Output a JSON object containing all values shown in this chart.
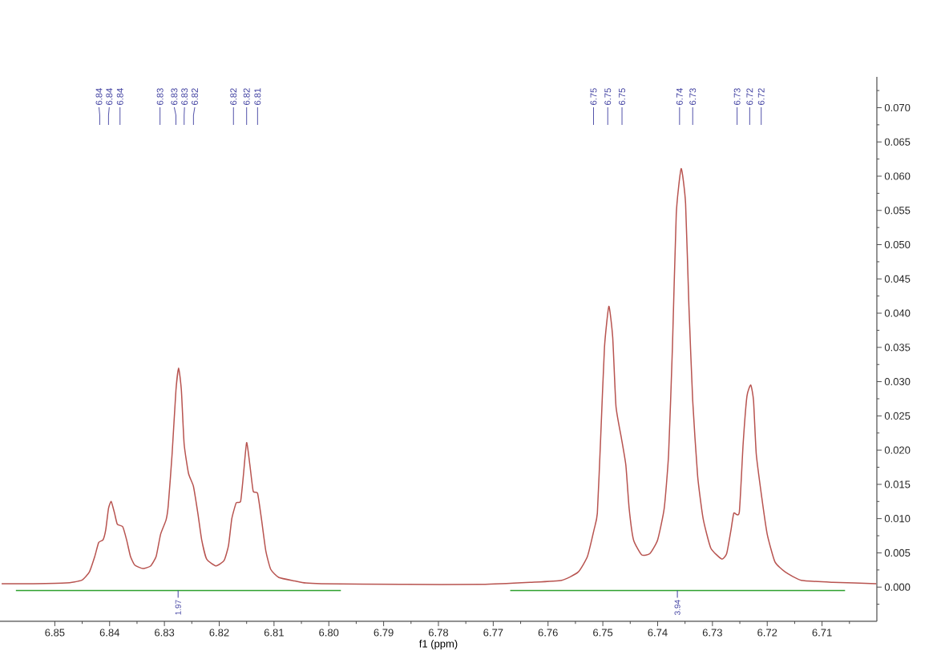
{
  "chart_data": {
    "type": "line",
    "xlabel": "f1 (ppm)",
    "xlim": [
      6.86,
      6.7
    ],
    "ylim": [
      -0.005,
      0.0745
    ],
    "xticks": [
      6.85,
      {
        "value": 6.845,
        "label": null
      },
      6.84,
      {
        "value": 6.835,
        "label": null
      },
      6.83,
      {
        "value": 6.825,
        "label": null
      },
      6.82,
      {
        "value": 6.815,
        "label": null
      },
      6.81,
      {
        "value": 6.805,
        "label": null
      },
      {
        "value": 6.8,
        "label": "6.80"
      },
      {
        "value": 6.795,
        "label": null
      },
      6.79,
      {
        "value": 6.785,
        "label": null
      },
      6.78,
      {
        "value": 6.775,
        "label": null
      },
      6.77,
      {
        "value": 6.765,
        "label": null
      },
      6.76,
      {
        "value": 6.755,
        "label": null
      },
      6.75,
      {
        "value": 6.745,
        "label": null
      },
      6.74,
      {
        "value": 6.735,
        "label": null
      },
      6.73,
      {
        "value": 6.725,
        "label": null
      },
      6.72,
      {
        "value": 6.715,
        "label": null
      },
      6.71,
      {
        "value": 6.705,
        "label": null
      }
    ],
    "yticks": [
      {
        "value": -0.0025,
        "label": null
      },
      {
        "value": 0,
        "label": "0.000"
      },
      {
        "value": 0.0025,
        "label": null
      },
      {
        "value": 0.005,
        "label": "0.005"
      },
      {
        "value": 0.0075,
        "label": null
      },
      {
        "value": 0.01,
        "label": "0.010"
      },
      {
        "value": 0.0125,
        "label": null
      },
      {
        "value": 0.015,
        "label": "0.015"
      },
      {
        "value": 0.0175,
        "label": null
      },
      {
        "value": 0.02,
        "label": "0.020"
      },
      {
        "value": 0.0225,
        "label": null
      },
      {
        "value": 0.025,
        "label": "0.025"
      },
      {
        "value": 0.0275,
        "label": null
      },
      {
        "value": 0.03,
        "label": "0.030"
      },
      {
        "value": 0.0325,
        "label": null
      },
      {
        "value": 0.035,
        "label": "0.035"
      },
      {
        "value": 0.0375,
        "label": null
      },
      {
        "value": 0.04,
        "label": "0.040"
      },
      {
        "value": 0.0425,
        "label": null
      },
      {
        "value": 0.045,
        "label": "0.045"
      },
      {
        "value": 0.0475,
        "label": null
      },
      {
        "value": 0.05,
        "label": "0.050"
      },
      {
        "value": 0.0525,
        "label": null
      },
      {
        "value": 0.055,
        "label": "0.055"
      },
      {
        "value": 0.0575,
        "label": null
      },
      {
        "value": 0.06,
        "label": "0.060"
      },
      {
        "value": 0.0625,
        "label": null
      },
      {
        "value": 0.065,
        "label": "0.065"
      },
      {
        "value": 0.0675,
        "label": null
      },
      {
        "value": 0.07,
        "label": "0.070"
      },
      {
        "value": 0.0725,
        "label": null
      }
    ],
    "series": [
      {
        "color": "#b85450",
        "x": [
          6.8597,
          6.8539,
          6.848,
          6.8451,
          6.8437,
          6.8427,
          6.842,
          6.8412,
          6.8407,
          6.8402,
          6.8397,
          6.8391,
          6.8386,
          6.8376,
          6.8369,
          6.8362,
          6.8354,
          6.8339,
          6.8325,
          6.8315,
          6.8307,
          6.8297,
          6.8293,
          6.8286,
          6.8279,
          6.8274,
          6.8269,
          6.8264,
          6.8256,
          6.8247,
          6.8239,
          6.8232,
          6.8223,
          6.8206,
          6.8191,
          6.8183,
          6.8177,
          6.8169,
          6.8161,
          6.8156,
          6.815,
          6.8144,
          6.8138,
          6.813,
          6.8123,
          6.8115,
          6.8106,
          6.8091,
          6.8062,
          6.8042,
          6.8013,
          6.7867,
          6.7721,
          6.7633,
          6.7575,
          6.7545,
          6.7528,
          6.7516,
          6.751,
          6.7504,
          6.7497,
          6.7489,
          6.7482,
          6.7476,
          6.7466,
          6.7458,
          6.7452,
          6.7444,
          6.7429,
          6.7414,
          6.74,
          6.7388,
          6.738,
          6.7373,
          6.7366,
          6.7357,
          6.7349,
          6.7343,
          6.7336,
          6.7327,
          6.7317,
          6.7303,
          6.7283,
          6.7274,
          6.7266,
          6.7261,
          6.7251,
          6.7244,
          6.7237,
          6.723,
          6.7225,
          6.722,
          6.721,
          6.72,
          6.7186,
          6.7167,
          6.7138,
          6.708,
          6.7001
        ],
        "values": [
          0.0005,
          0.0005,
          0.0006,
          0.001,
          0.0022,
          0.0045,
          0.0065,
          0.0069,
          0.0084,
          0.0115,
          0.0125,
          0.0108,
          0.0092,
          0.0088,
          0.0069,
          0.0045,
          0.0032,
          0.0027,
          0.0031,
          0.0045,
          0.0077,
          0.0098,
          0.0119,
          0.0194,
          0.0287,
          0.032,
          0.0287,
          0.0209,
          0.0166,
          0.0147,
          0.0108,
          0.0069,
          0.0041,
          0.0031,
          0.0039,
          0.0061,
          0.01,
          0.0123,
          0.0125,
          0.0162,
          0.0211,
          0.0178,
          0.014,
          0.0137,
          0.01,
          0.0053,
          0.0026,
          0.0014,
          0.0009,
          0.0006,
          0.0005,
          0.0004,
          0.0004,
          0.0007,
          0.001,
          0.0022,
          0.0045,
          0.0084,
          0.0108,
          0.0217,
          0.035,
          0.041,
          0.0365,
          0.0264,
          0.0217,
          0.0178,
          0.0115,
          0.0069,
          0.0047,
          0.0049,
          0.0069,
          0.0115,
          0.0194,
          0.035,
          0.0545,
          0.0611,
          0.056,
          0.0412,
          0.0272,
          0.0162,
          0.01,
          0.0057,
          0.0041,
          0.0049,
          0.0084,
          0.0108,
          0.0109,
          0.0209,
          0.0279,
          0.0295,
          0.0272,
          0.0194,
          0.0131,
          0.0077,
          0.0037,
          0.0022,
          0.001,
          0.0007,
          0.0005
        ]
      },
      {
        "color": "#2ca02c",
        "x": [
          6.8571,
          6.7978
        ],
        "values": [
          -0.0005,
          -0.0005
        ]
      },
      {
        "color": "#2ca02c",
        "x": [
          6.7669,
          6.7058
        ],
        "values": [
          -0.0005,
          -0.0005
        ]
      }
    ],
    "annotations": [
      {
        "text": "6.84",
        "x": 6.8418
      },
      {
        "text": "6.84",
        "x": 6.8402
      },
      {
        "text": "6.84",
        "x": 6.8381
      },
      {
        "text": "6.83",
        "x": 6.8308
      },
      {
        "text": "6.83",
        "x": 6.8279
      },
      {
        "text": "6.83",
        "x": 6.8264
      },
      {
        "text": "6.82",
        "x": 6.8247
      },
      {
        "text": "6.82",
        "x": 6.8174
      },
      {
        "text": "6.82",
        "x": 6.815
      },
      {
        "text": "6.81",
        "x": 6.813
      },
      {
        "text": "6.75",
        "x": 6.7517
      },
      {
        "text": "6.75",
        "x": 6.7491
      },
      {
        "text": "6.75",
        "x": 6.7465
      },
      {
        "text": "6.74",
        "x": 6.736
      },
      {
        "text": "6.73",
        "x": 6.7336
      },
      {
        "text": "6.73",
        "x": 6.7255
      },
      {
        "text": "6.72",
        "x": 6.7232
      },
      {
        "text": "6.72",
        "x": 6.7211
      },
      {
        "text": "1.97",
        "x": 6.8275,
        "y": -0.0005
      },
      {
        "text": "3.94",
        "x": 6.7364,
        "y": -0.0005
      }
    ]
  }
}
